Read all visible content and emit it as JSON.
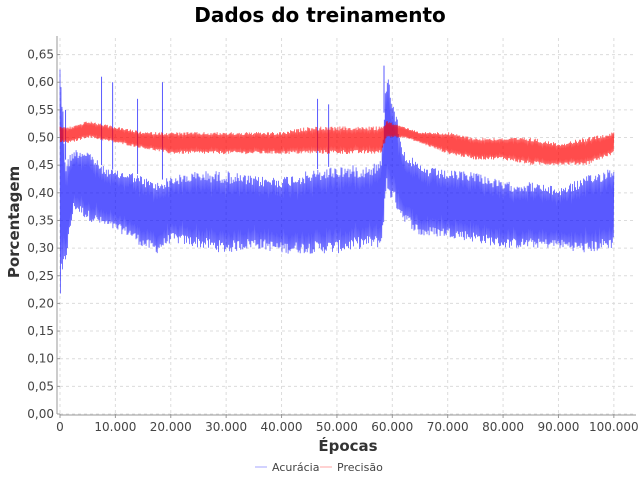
{
  "chart_data": {
    "type": "line",
    "title": "Dados do treinamento",
    "xlabel": "Épocas",
    "ylabel": "Porcentagem",
    "xlim": [
      0,
      104000
    ],
    "ylim": [
      0,
      0.68
    ],
    "x_ticks": [
      0,
      10000,
      20000,
      30000,
      40000,
      50000,
      60000,
      70000,
      80000,
      90000,
      100000
    ],
    "x_tick_labels": [
      "0",
      "10.000",
      "20.000",
      "30.000",
      "40.000",
      "50.000",
      "60.000",
      "70.000",
      "80.000",
      "90.000",
      "100.000"
    ],
    "y_ticks": [
      0,
      0.05,
      0.1,
      0.15,
      0.2,
      0.25,
      0.3,
      0.35,
      0.4,
      0.45,
      0.5,
      0.55,
      0.6,
      0.65
    ],
    "y_tick_labels": [
      "0,00",
      "0,05",
      "0,10",
      "0,15",
      "0,20",
      "0,25",
      "0,30",
      "0,35",
      "0,40",
      "0,45",
      "0,50",
      "0,55",
      "0,60",
      "0,65"
    ],
    "grid": true,
    "legend_position": "bottom-center",
    "series": [
      {
        "name": "Acurácia",
        "color": "#0000ff",
        "x": [
          0,
          1000,
          2500,
          5000,
          7500,
          10000,
          12500,
          15000,
          17500,
          20000,
          25000,
          30000,
          35000,
          40000,
          45000,
          50000,
          55000,
          58000,
          59000,
          62000,
          65000,
          70000,
          75000,
          80000,
          85000,
          90000,
          95000,
          100000
        ],
        "low": [
          0.19,
          0.27,
          0.37,
          0.35,
          0.34,
          0.33,
          0.32,
          0.3,
          0.29,
          0.31,
          0.3,
          0.29,
          0.3,
          0.29,
          0.29,
          0.29,
          0.3,
          0.3,
          0.4,
          0.35,
          0.32,
          0.32,
          0.31,
          0.3,
          0.3,
          0.3,
          0.29,
          0.3
        ],
        "high": [
          0.67,
          0.46,
          0.48,
          0.48,
          0.45,
          0.44,
          0.44,
          0.43,
          0.42,
          0.43,
          0.44,
          0.44,
          0.43,
          0.43,
          0.44,
          0.45,
          0.45,
          0.46,
          0.63,
          0.48,
          0.45,
          0.44,
          0.44,
          0.42,
          0.42,
          0.41,
          0.43,
          0.45
        ],
        "spikes": [
          [
            1000,
            0.55
          ],
          [
            7500,
            0.61
          ],
          [
            9500,
            0.6
          ],
          [
            14000,
            0.57
          ],
          [
            18500,
            0.6
          ],
          [
            46500,
            0.57
          ],
          [
            48500,
            0.56
          ],
          [
            58500,
            0.63
          ]
        ]
      },
      {
        "name": "Precisão",
        "color": "#ff0000",
        "x": [
          0,
          2000,
          5000,
          10000,
          15000,
          20000,
          25000,
          30000,
          35000,
          40000,
          45000,
          50000,
          55000,
          58000,
          59000,
          62000,
          65000,
          70000,
          75000,
          80000,
          85000,
          90000,
          95000,
          100000
        ],
        "low": [
          0.49,
          0.49,
          0.5,
          0.49,
          0.48,
          0.47,
          0.47,
          0.47,
          0.47,
          0.47,
          0.47,
          0.47,
          0.47,
          0.47,
          0.5,
          0.5,
          0.49,
          0.47,
          0.46,
          0.46,
          0.45,
          0.45,
          0.45,
          0.47
        ],
        "high": [
          0.52,
          0.52,
          0.53,
          0.52,
          0.51,
          0.51,
          0.51,
          0.51,
          0.51,
          0.51,
          0.52,
          0.52,
          0.52,
          0.52,
          0.53,
          0.52,
          0.51,
          0.51,
          0.5,
          0.5,
          0.5,
          0.49,
          0.5,
          0.51
        ]
      }
    ]
  }
}
